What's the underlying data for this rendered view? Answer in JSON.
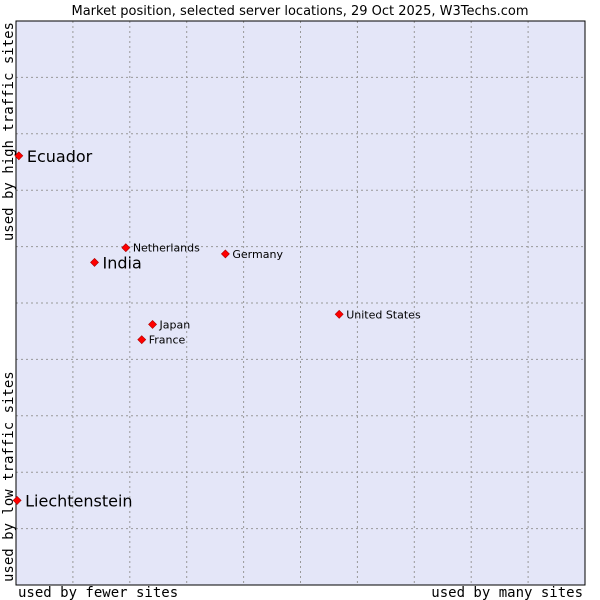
{
  "chart_data": {
    "type": "scatter",
    "title": "Market position, selected server locations, 29 Oct 2025, W3Techs.com",
    "xlabel_left": "used by fewer sites",
    "xlabel_right": "used by many sites",
    "ylabel_top": "used by high traffic sites",
    "ylabel_bottom": "used by low traffic sites",
    "xlim": [
      0,
      100
    ],
    "ylim": [
      0,
      100
    ],
    "grid": true,
    "colors": {
      "plot_background": "#e4e6f8",
      "point_fill": "#ff0000",
      "point_stroke": "#aa0000",
      "frame": "#000000"
    },
    "points": [
      {
        "name": "Ecuador",
        "x": 0.5,
        "y": 76.1,
        "highlight": true
      },
      {
        "name": "Netherlands",
        "x": 19.3,
        "y": 59.8,
        "highlight": false
      },
      {
        "name": "Germany",
        "x": 36.8,
        "y": 58.7,
        "highlight": false
      },
      {
        "name": "India",
        "x": 13.8,
        "y": 57.2,
        "highlight": true
      },
      {
        "name": "United States",
        "x": 56.8,
        "y": 48.0,
        "highlight": false
      },
      {
        "name": "Japan",
        "x": 24.0,
        "y": 46.2,
        "highlight": false
      },
      {
        "name": "France",
        "x": 22.1,
        "y": 43.5,
        "highlight": false
      },
      {
        "name": "Liechtenstein",
        "x": 0.2,
        "y": 15.0,
        "highlight": true
      }
    ]
  }
}
